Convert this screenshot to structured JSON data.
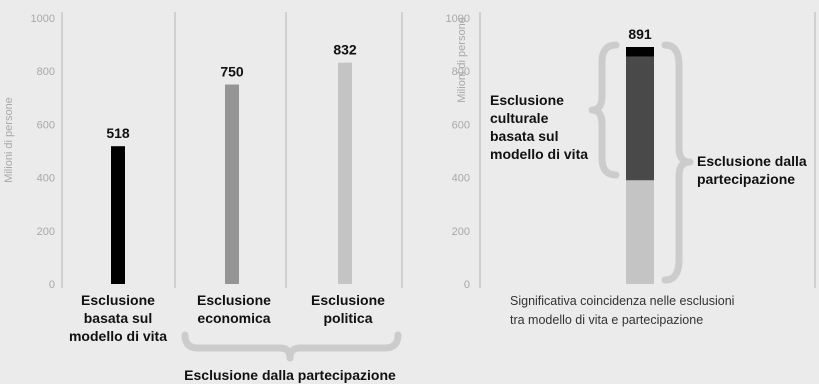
{
  "chart_data": [
    {
      "type": "bar",
      "ylabel": "Milioni di persone",
      "ylim": [
        0,
        1000
      ],
      "yticks": [
        0,
        200,
        400,
        600,
        800,
        1000
      ],
      "categories": [
        [
          "Esclusione",
          "basata sul",
          "modello di vita"
        ],
        [
          "Esclusione",
          "economica"
        ],
        [
          "Esclusione",
          "politica"
        ]
      ],
      "values": [
        518,
        750,
        832
      ],
      "data_labels": [
        "518",
        "750",
        "832"
      ],
      "colors": [
        "#000000",
        "#959595",
        "#c4c4c4"
      ],
      "group_bracket_label": "Esclusione dalla partecipazione"
    },
    {
      "type": "bar",
      "stacked": true,
      "ylabel": "Milioni di persone",
      "ylim": [
        0,
        1000
      ],
      "yticks": [
        0,
        200,
        400,
        600,
        800,
        1000
      ],
      "total": 891,
      "total_label": "891",
      "segments": [
        {
          "from": 0,
          "to": 390,
          "color": "#c4c4c4"
        },
        {
          "from": 390,
          "to": 855,
          "color": "#494949"
        },
        {
          "from": 855,
          "to": 891,
          "color": "#000000"
        }
      ],
      "left_bracket_label": [
        "Esclusione",
        "culturale",
        "basata sul",
        "modello di vita"
      ],
      "right_bracket_label": [
        "Esclusione dalla",
        "partecipazione"
      ],
      "caption": [
        "Significativa coincidenza nelle esclusioni",
        "tra modello di vita e partecipazione"
      ]
    }
  ],
  "colors": {
    "background": "#ebebeb",
    "divider": "#b4b4b4",
    "bracket": "#cccccc"
  }
}
